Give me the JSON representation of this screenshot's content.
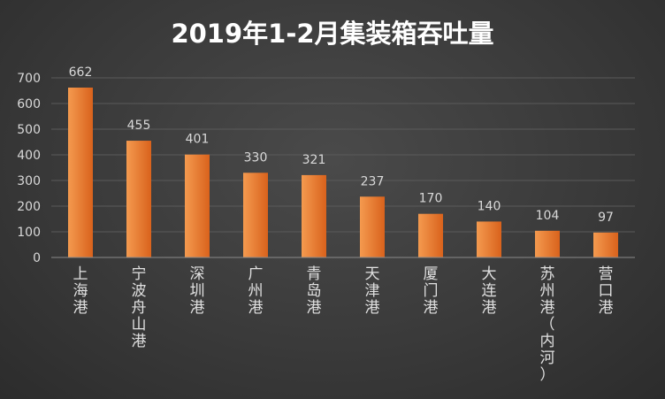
{
  "chart_data": {
    "type": "bar",
    "title": "2019年1-2月集装箱吞吐量",
    "categories": [
      "上海港",
      "宁波舟山港",
      "深圳港",
      "广州港",
      "青岛港",
      "天津港",
      "厦门港",
      "大连港",
      "苏州港（内河）",
      "营口港"
    ],
    "values": [
      662,
      455,
      401,
      330,
      321,
      237,
      170,
      140,
      104,
      97
    ],
    "ylim": [
      0,
      700
    ],
    "yticks": [
      "0",
      "100",
      "200",
      "300",
      "400",
      "500",
      "600",
      "700"
    ],
    "xlabel": "",
    "ylabel": "",
    "grid": true,
    "legend": "none",
    "colors": {
      "bar_light": "#f49a4f",
      "bar_dark": "#d9621c",
      "title": "#ffffff",
      "text": "#d9d9d9"
    }
  }
}
